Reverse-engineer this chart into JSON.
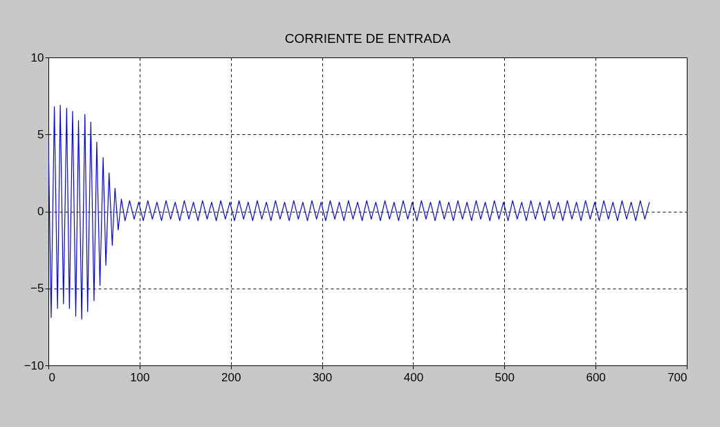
{
  "chart_data": {
    "type": "line",
    "title": "CORRIENTE DE ENTRADA",
    "xlim": [
      0,
      700
    ],
    "xticks": [
      0,
      100,
      200,
      300,
      400,
      500,
      600,
      700
    ],
    "ylim": [
      -10,
      10
    ],
    "yticks": [
      -10,
      -5,
      0,
      5,
      10
    ],
    "grid": true,
    "line_style": "solid",
    "series": [
      {
        "color": "#0000ff",
        "x": [
          0,
          3,
          6.5,
          10,
          13,
          16.5,
          20,
          23,
          26.5,
          30,
          33,
          36.5,
          40,
          43,
          46.5,
          50,
          53,
          56.5,
          60,
          63,
          66.5,
          70,
          73,
          76.5,
          80,
          84,
          89,
          94,
          99,
          104,
          109,
          114,
          119,
          124,
          129,
          134,
          139,
          144,
          149,
          154,
          159,
          164,
          169,
          174,
          179,
          184,
          189,
          194,
          199,
          204,
          209,
          214,
          219,
          224,
          229,
          234,
          239,
          244,
          249,
          254,
          259,
          264,
          269,
          274,
          279,
          284,
          289,
          294,
          299,
          304,
          309,
          314,
          319,
          324,
          329,
          334,
          339,
          344,
          349,
          354,
          359,
          364,
          369,
          374,
          379,
          384,
          389,
          394,
          399,
          404,
          409,
          414,
          419,
          424,
          429,
          434,
          439,
          444,
          449,
          454,
          459,
          464,
          469,
          474,
          479,
          484,
          489,
          494,
          499,
          504,
          509,
          514,
          519,
          524,
          529,
          534,
          539,
          544,
          549,
          554,
          559,
          564,
          569,
          574,
          579,
          584,
          589,
          594,
          599,
          604,
          609,
          614,
          619,
          624,
          629,
          634,
          639,
          644,
          649,
          654,
          659
        ],
        "values": [
          4.5,
          -6.9,
          6.8,
          -6.3,
          6.9,
          -6.0,
          6.7,
          -6.3,
          6.5,
          -6.8,
          5.9,
          -7.0,
          6.3,
          -6.5,
          5.8,
          -5.8,
          4.5,
          -4.8,
          3.5,
          -3.5,
          2.5,
          -2.2,
          1.5,
          -1.2,
          0.8,
          -0.6,
          0.7,
          -0.5,
          0.6,
          -0.6,
          0.7,
          -0.5,
          0.6,
          -0.6,
          0.7,
          -0.5,
          0.6,
          -0.6,
          0.7,
          -0.5,
          0.6,
          -0.6,
          0.7,
          -0.5,
          0.6,
          -0.6,
          0.7,
          -0.5,
          0.6,
          -0.6,
          0.7,
          -0.5,
          0.6,
          -0.6,
          0.7,
          -0.5,
          0.6,
          -0.6,
          0.7,
          -0.5,
          0.6,
          -0.6,
          0.7,
          -0.5,
          0.6,
          -0.6,
          0.7,
          -0.5,
          0.6,
          -0.6,
          0.7,
          -0.5,
          0.6,
          -0.6,
          0.7,
          -0.5,
          0.6,
          -0.6,
          0.7,
          -0.5,
          0.6,
          -0.6,
          0.7,
          -0.5,
          0.6,
          -0.6,
          0.7,
          -0.5,
          0.6,
          -0.6,
          0.7,
          -0.5,
          0.6,
          -0.6,
          0.7,
          -0.5,
          0.6,
          -0.6,
          0.7,
          -0.5,
          0.6,
          -0.6,
          0.7,
          -0.5,
          0.6,
          -0.6,
          0.7,
          -0.5,
          0.6,
          -0.6,
          0.7,
          -0.5,
          0.6,
          -0.6,
          0.7,
          -0.5,
          0.6,
          -0.6,
          0.7,
          -0.5,
          0.6,
          -0.6,
          0.7,
          -0.5,
          0.6,
          -0.6,
          0.7,
          -0.5,
          0.6,
          -0.6,
          0.7,
          -0.5,
          0.6,
          -0.6,
          0.7,
          -0.5,
          0.6,
          -0.6,
          0.7,
          -0.5,
          0.6
        ]
      }
    ]
  }
}
